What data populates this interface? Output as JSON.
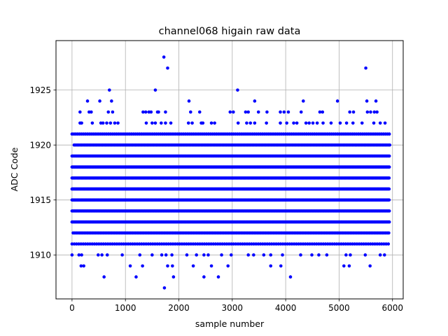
{
  "chart_data": {
    "type": "scatter",
    "title": "channel068 higain raw data",
    "xlabel": "sample number",
    "ylabel": "ADC Code",
    "xlim": [
      -300,
      6200
    ],
    "ylim": [
      1906.0,
      1929.5
    ],
    "x_ticks": [
      0,
      1000,
      2000,
      3000,
      4000,
      5000,
      6000
    ],
    "y_ticks": [
      1910,
      1915,
      1920,
      1925
    ],
    "x_tick_labels": [
      "0",
      "1000",
      "2000",
      "3000",
      "4000",
      "5000",
      "6000"
    ],
    "y_tick_labels": [
      "1910",
      "1915",
      "1920",
      "1925"
    ],
    "grid": true,
    "marker_color": "#0000ff",
    "series": [
      {
        "bands": [
          {
            "y": 1911,
            "x_start": 0,
            "x_end": 5950,
            "step": 42
          },
          {
            "y": 1912,
            "x_start": 20,
            "x_end": 5950,
            "step": 30
          },
          {
            "y": 1913,
            "x_start": 0,
            "x_end": 5950,
            "step": 22
          },
          {
            "y": 1914,
            "x_start": 0,
            "x_end": 5950,
            "step": 18
          },
          {
            "y": 1915,
            "x_start": 0,
            "x_end": 5950,
            "step": 16
          },
          {
            "y": 1916,
            "x_start": 0,
            "x_end": 5950,
            "step": 16
          },
          {
            "y": 1917,
            "x_start": 0,
            "x_end": 5950,
            "step": 16
          },
          {
            "y": 1918,
            "x_start": 0,
            "x_end": 5950,
            "step": 18
          },
          {
            "y": 1919,
            "x_start": 0,
            "x_end": 5950,
            "step": 22
          },
          {
            "y": 1920,
            "x_start": 40,
            "x_end": 5950,
            "step": 28
          },
          {
            "y": 1921,
            "x_start": 0,
            "x_end": 5950,
            "step": 36
          }
        ],
        "points": [
          [
            0,
            1910
          ],
          [
            130,
            1910
          ],
          [
            180,
            1910
          ],
          [
            490,
            1910
          ],
          [
            560,
            1910
          ],
          [
            660,
            1910
          ],
          [
            940,
            1910
          ],
          [
            1270,
            1910
          ],
          [
            1500,
            1910
          ],
          [
            1680,
            1910
          ],
          [
            1760,
            1910
          ],
          [
            1870,
            1910
          ],
          [
            2150,
            1910
          ],
          [
            2330,
            1910
          ],
          [
            2470,
            1910
          ],
          [
            2550,
            1910
          ],
          [
            2800,
            1910
          ],
          [
            2980,
            1910
          ],
          [
            3300,
            1910
          ],
          [
            3400,
            1910
          ],
          [
            3590,
            1910
          ],
          [
            3720,
            1910
          ],
          [
            3940,
            1910
          ],
          [
            4280,
            1910
          ],
          [
            4490,
            1910
          ],
          [
            4620,
            1910
          ],
          [
            4770,
            1910
          ],
          [
            5130,
            1910
          ],
          [
            5210,
            1910
          ],
          [
            5490,
            1910
          ],
          [
            5770,
            1910
          ],
          [
            5850,
            1910
          ],
          [
            170,
            1909
          ],
          [
            220,
            1909
          ],
          [
            1090,
            1909
          ],
          [
            1320,
            1909
          ],
          [
            1790,
            1909
          ],
          [
            1880,
            1909
          ],
          [
            2270,
            1909
          ],
          [
            2610,
            1909
          ],
          [
            2920,
            1909
          ],
          [
            3720,
            1909
          ],
          [
            3910,
            1909
          ],
          [
            5090,
            1909
          ],
          [
            5190,
            1909
          ],
          [
            5580,
            1909
          ],
          [
            600,
            1908
          ],
          [
            1200,
            1908
          ],
          [
            1900,
            1908
          ],
          [
            2470,
            1908
          ],
          [
            2740,
            1908
          ],
          [
            4090,
            1908
          ],
          [
            1730,
            1907
          ],
          [
            150,
            1922
          ],
          [
            180,
            1922
          ],
          [
            380,
            1922
          ],
          [
            540,
            1922
          ],
          [
            580,
            1922
          ],
          [
            650,
            1922
          ],
          [
            720,
            1922
          ],
          [
            800,
            1922
          ],
          [
            860,
            1922
          ],
          [
            1390,
            1922
          ],
          [
            1500,
            1922
          ],
          [
            1560,
            1922
          ],
          [
            1670,
            1922
          ],
          [
            1750,
            1922
          ],
          [
            1850,
            1922
          ],
          [
            2180,
            1922
          ],
          [
            2250,
            1922
          ],
          [
            2420,
            1922
          ],
          [
            2450,
            1922
          ],
          [
            2610,
            1922
          ],
          [
            2670,
            1922
          ],
          [
            3110,
            1922
          ],
          [
            3270,
            1922
          ],
          [
            3340,
            1922
          ],
          [
            3420,
            1922
          ],
          [
            3640,
            1922
          ],
          [
            3900,
            1922
          ],
          [
            4020,
            1922
          ],
          [
            4150,
            1922
          ],
          [
            4210,
            1922
          ],
          [
            4380,
            1922
          ],
          [
            4440,
            1922
          ],
          [
            4510,
            1922
          ],
          [
            4590,
            1922
          ],
          [
            4700,
            1922
          ],
          [
            4850,
            1922
          ],
          [
            5020,
            1922
          ],
          [
            5140,
            1922
          ],
          [
            5260,
            1922
          ],
          [
            5430,
            1922
          ],
          [
            5650,
            1922
          ],
          [
            5770,
            1922
          ],
          [
            5860,
            1922
          ],
          [
            150,
            1923
          ],
          [
            320,
            1923
          ],
          [
            360,
            1923
          ],
          [
            680,
            1923
          ],
          [
            760,
            1923
          ],
          [
            1330,
            1923
          ],
          [
            1380,
            1923
          ],
          [
            1440,
            1923
          ],
          [
            1480,
            1923
          ],
          [
            1600,
            1923
          ],
          [
            1620,
            1923
          ],
          [
            1750,
            1923
          ],
          [
            2220,
            1923
          ],
          [
            2390,
            1923
          ],
          [
            2960,
            1923
          ],
          [
            3020,
            1923
          ],
          [
            3250,
            1923
          ],
          [
            3300,
            1923
          ],
          [
            3490,
            1923
          ],
          [
            3650,
            1923
          ],
          [
            3900,
            1923
          ],
          [
            3970,
            1923
          ],
          [
            4050,
            1923
          ],
          [
            4290,
            1923
          ],
          [
            4640,
            1923
          ],
          [
            4690,
            1923
          ],
          [
            5200,
            1923
          ],
          [
            5270,
            1923
          ],
          [
            5530,
            1923
          ],
          [
            5590,
            1923
          ],
          [
            5660,
            1923
          ],
          [
            5710,
            1923
          ],
          [
            290,
            1924
          ],
          [
            520,
            1924
          ],
          [
            740,
            1924
          ],
          [
            2190,
            1924
          ],
          [
            3420,
            1924
          ],
          [
            4330,
            1924
          ],
          [
            4970,
            1924
          ],
          [
            5520,
            1924
          ],
          [
            5690,
            1924
          ],
          [
            700,
            1925
          ],
          [
            1560,
            1925
          ],
          [
            3100,
            1925
          ],
          [
            1720,
            1928
          ],
          [
            1790,
            1927
          ],
          [
            5500,
            1927
          ]
        ]
      }
    ]
  }
}
